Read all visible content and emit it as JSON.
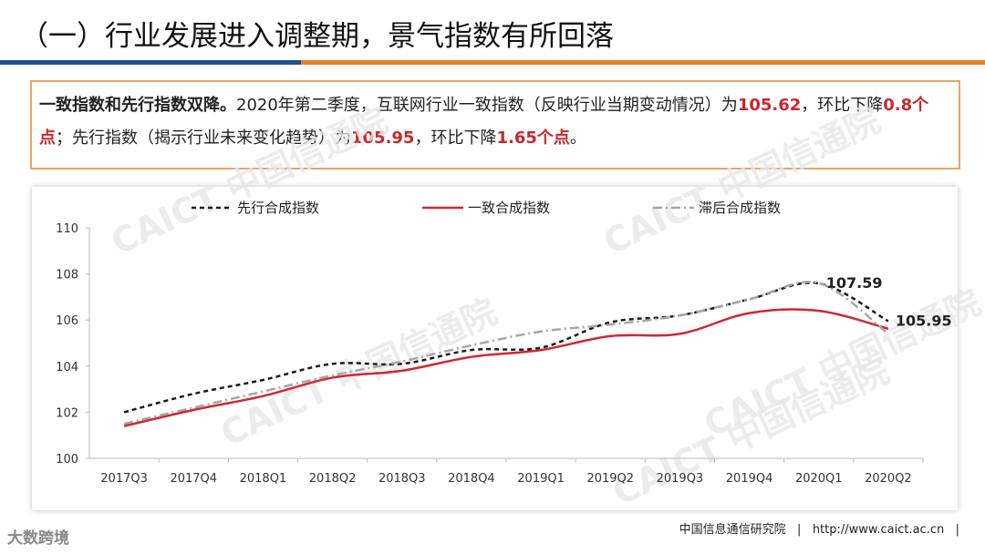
{
  "header": {
    "title": "（一）行业发展进入调整期，景气指数有所回落"
  },
  "summary": [
    {
      "text": "一致指数和先行指数双降。",
      "style": "bold"
    },
    {
      "text": "2020年第二季度，互联网行业一致指数（反映行业当期变动情况）为",
      "style": "normal"
    },
    {
      "text": "105.62",
      "style": "highlight"
    },
    {
      "text": "，环比下降",
      "style": "normal"
    },
    {
      "text": "0.8个点",
      "style": "highlight"
    },
    {
      "text": "；先行指数（揭示行业未来变化趋势）为",
      "style": "normal"
    },
    {
      "text": "105.95",
      "style": "highlight"
    },
    {
      "text": "，环比下降",
      "style": "normal"
    },
    {
      "text": "1.65个点",
      "style": "highlight"
    },
    {
      "text": "。",
      "style": "normal"
    }
  ],
  "chart_data": {
    "type": "line",
    "categories": [
      "2017Q3",
      "2017Q4",
      "2018Q1",
      "2018Q2",
      "2018Q3",
      "2018Q4",
      "2019Q1",
      "2019Q2",
      "2019Q3",
      "2019Q4",
      "2020Q1",
      "2020Q2"
    ],
    "series": [
      {
        "name": "先行合成指数",
        "color": "#1a1a1a",
        "dash": "dashed",
        "values": [
          102.0,
          102.8,
          103.4,
          104.1,
          104.1,
          104.7,
          104.8,
          105.9,
          106.2,
          106.9,
          107.59,
          105.95
        ],
        "data_labels": [
          10,
          11
        ]
      },
      {
        "name": "一致合成指数",
        "color": "#d0282e",
        "dash": "solid",
        "values": [
          101.4,
          102.1,
          102.7,
          103.5,
          103.8,
          104.4,
          104.7,
          105.3,
          105.4,
          106.3,
          106.4,
          105.62
        ]
      },
      {
        "name": "滞后合成指数",
        "color": "#a6a6a6",
        "dash": "dashdot",
        "values": [
          101.5,
          102.2,
          102.9,
          103.6,
          104.2,
          104.9,
          105.5,
          105.8,
          106.2,
          106.9,
          107.6,
          105.4
        ]
      }
    ],
    "ylim": [
      100,
      110
    ],
    "yticks": [
      100,
      102,
      104,
      106,
      108,
      110
    ],
    "grid": false
  },
  "watermark": "CAICT 中国信通院",
  "footer": {
    "org": "中国信息通信研究院",
    "url": "http://www.caict.ac.cn",
    "logo": "大数跨境"
  }
}
